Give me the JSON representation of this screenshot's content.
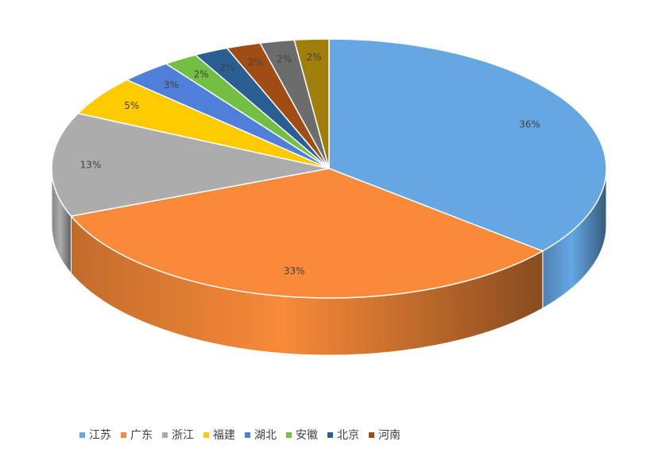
{
  "chart_data": {
    "type": "pie",
    "style": "3d",
    "categories": [
      "江苏",
      "广东",
      "浙江",
      "福建",
      "湖北",
      "安徽",
      "北京",
      "河南",
      "",
      ""
    ],
    "values": [
      36,
      33,
      13,
      5,
      3,
      2,
      2,
      2,
      2,
      2
    ],
    "labels": [
      "36%",
      "33%",
      "13%",
      "5%",
      "3%",
      "2%",
      "2%",
      "2%",
      "2%",
      "2%"
    ],
    "colors": [
      "#64a7e3",
      "#f88a39",
      "#acacac",
      "#ffcb00",
      "#4f7fd8",
      "#72bf44",
      "#2b5f94",
      "#a04d14",
      "#6c6c6c",
      "#a07e0c"
    ],
    "legend": {
      "position": "bottom",
      "entries": [
        {
          "label": "江苏",
          "color": "#64a7e3"
        },
        {
          "label": "广东",
          "color": "#f88a39"
        },
        {
          "label": "浙江",
          "color": "#acacac"
        },
        {
          "label": "福建",
          "color": "#ffcb00"
        },
        {
          "label": "湖北",
          "color": "#4f7fd8"
        },
        {
          "label": "安徽",
          "color": "#72bf44"
        },
        {
          "label": "北京",
          "color": "#2b5f94"
        },
        {
          "label": "河南",
          "color": "#a04d14"
        }
      ]
    }
  }
}
